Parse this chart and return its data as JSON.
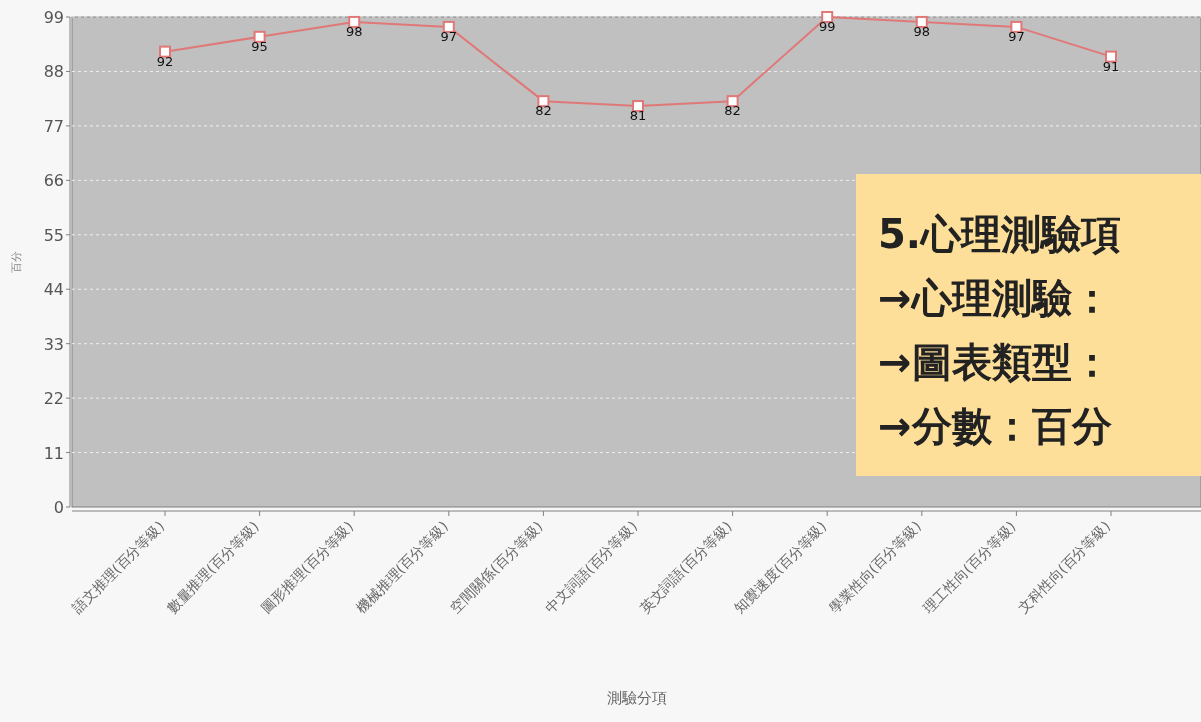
{
  "chart_data": {
    "type": "line",
    "xlabel": "測驗分項",
    "ylabel": "百分",
    "categories": [
      "語文推理(百分等級)",
      "數量推理(百分等級)",
      "圖形推理(百分等級)",
      "機械推理(百分等級)",
      "空間關係(百分等級)",
      "中文詞語(百分等級)",
      "英文詞語(百分等級)",
      "知覺速度(百分等級)",
      "學業性向(百分等級)",
      "理工性向(百分等級)",
      "文科性向(百分等級)"
    ],
    "series": [
      {
        "color": "#e07878",
        "values": [
          92,
          95,
          98,
          97,
          82,
          81,
          82,
          99,
          98,
          97,
          91
        ]
      }
    ],
    "ylim": [
      0,
      99
    ],
    "yticks": [
      0,
      11,
      22,
      33,
      44,
      55,
      66,
      77,
      88,
      99
    ],
    "grid": "y",
    "marker": "square",
    "line_style": "solid",
    "data_labels": true,
    "annotations": [
      "5.心理測驗項",
      "→心理測驗：",
      "→圖表類型：",
      "→分數：百分"
    ]
  }
}
